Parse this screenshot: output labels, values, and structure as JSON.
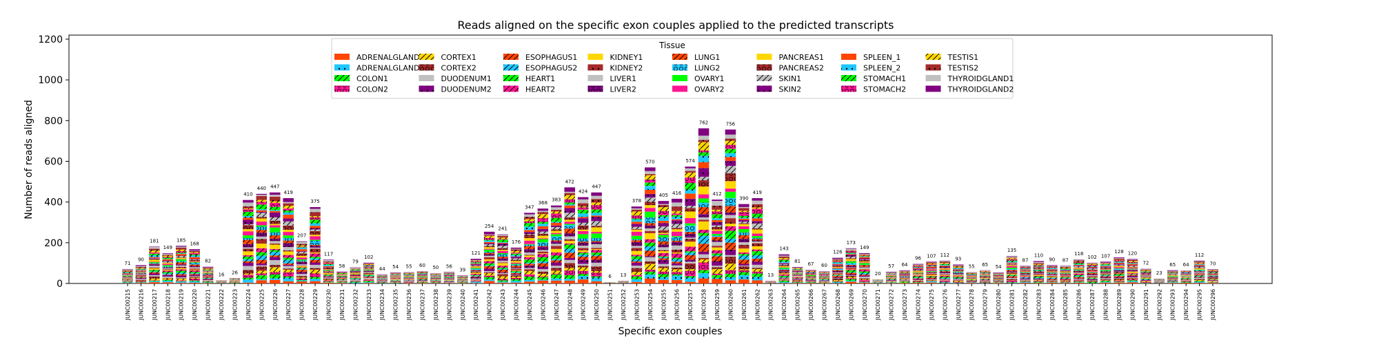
{
  "chart_data": {
    "type": "bar",
    "stacked": true,
    "title": "Reads aligned on the specific exon couples applied to the predicted transcripts",
    "xlabel": "Specific exon couples",
    "ylabel": "Number of reads aligned",
    "ylim": [
      0,
      1220
    ],
    "yticks": [
      0,
      200,
      400,
      600,
      800,
      1000,
      1200
    ],
    "legend_title": "Tissue",
    "legend_position": "upper center",
    "categories": [
      "JUNC00215",
      "JUNC00216",
      "JUNC00217",
      "JUNC00218",
      "JUNC00219",
      "JUNC00220",
      "JUNC00221",
      "JUNC00222",
      "JUNC00223",
      "JUNC00224",
      "JUNC00225",
      "JUNC00226",
      "JUNC00227",
      "JUNC00228",
      "JUNC00229",
      "JUNC00230",
      "JUNC00231",
      "JUNC00232",
      "JUNC00233",
      "JUNC00234",
      "JUNC00235",
      "JUNC00236",
      "JUNC00237",
      "JUNC00238",
      "JUNC00239",
      "JUNC00240",
      "JUNC00241",
      "JUNC00242",
      "JUNC00243",
      "JUNC00244",
      "JUNC00245",
      "JUNC00246",
      "JUNC00247",
      "JUNC00248",
      "JUNC00249",
      "JUNC00250",
      "JUNC00251",
      "JUNC00252",
      "JUNC00253",
      "JUNC00254",
      "JUNC00255",
      "JUNC00256",
      "JUNC00257",
      "JUNC00258",
      "JUNC00259",
      "JUNC00260",
      "JUNC00261",
      "JUNC00262",
      "JUNC00263",
      "JUNC00264",
      "JUNC00265",
      "JUNC00266",
      "JUNC00267",
      "JUNC00268",
      "JUNC00269",
      "JUNC00270",
      "JUNC00271",
      "JUNC00272",
      "JUNC00273",
      "JUNC00274",
      "JUNC00275",
      "JUNC00276",
      "JUNC00277",
      "JUNC00278",
      "JUNC00279",
      "JUNC00280",
      "JUNC00281",
      "JUNC00282",
      "JUNC00283",
      "JUNC00284",
      "JUNC00285",
      "JUNC00286",
      "JUNC00287",
      "JUNC00288",
      "JUNC00289",
      "JUNC00290",
      "JUNC00291",
      "JUNC00292",
      "JUNC00293",
      "JUNC00294",
      "JUNC00295",
      "JUNC00296"
    ],
    "totals": [
      71,
      90,
      181,
      149,
      185,
      168,
      82,
      16,
      26,
      410,
      440,
      447,
      419,
      207,
      375,
      117,
      58,
      79,
      102,
      44,
      54,
      55,
      60,
      50,
      56,
      39,
      121,
      254,
      241,
      176,
      347,
      368,
      383,
      472,
      424,
      447,
      6,
      13,
      378,
      570,
      405,
      416,
      574,
      762,
      412,
      756,
      390,
      419,
      13,
      143,
      81,
      67,
      60,
      126,
      173,
      149,
      20,
      57,
      64,
      96,
      107,
      112,
      93,
      55,
      65,
      54,
      135,
      87,
      110,
      90,
      87,
      118,
      102,
      107,
      128,
      120,
      72,
      23,
      65,
      64,
      112,
      70
    ],
    "series": [
      {
        "name": "ADRENALGLAND1",
        "color": "#ff4500",
        "hatch": ""
      },
      {
        "name": "ADRENALGLAND2",
        "color": "#1ec8ff",
        "hatch": "dots"
      },
      {
        "name": "COLON1",
        "color": "#00ff00",
        "hatch": "slash"
      },
      {
        "name": "COLON2",
        "color": "#ff1493",
        "hatch": "circles"
      },
      {
        "name": "CORTEX1",
        "color": "#ffd700",
        "hatch": "slash"
      },
      {
        "name": "CORTEX2",
        "color": "#a52a2a",
        "hatch": "circles"
      },
      {
        "name": "DUODENUM1",
        "color": "#c0c0c0",
        "hatch": ""
      },
      {
        "name": "DUODENUM2",
        "color": "#800080",
        "hatch": "dots"
      },
      {
        "name": "ESOPHAGUS1",
        "color": "#ff4500",
        "hatch": "slash"
      },
      {
        "name": "ESOPHAGUS2",
        "color": "#1ec8ff",
        "hatch": "slash"
      },
      {
        "name": "HEART1",
        "color": "#00ff00",
        "hatch": "slash"
      },
      {
        "name": "HEART2",
        "color": "#ff1493",
        "hatch": "slash"
      },
      {
        "name": "KIDNEY1",
        "color": "#ffd700",
        "hatch": ""
      },
      {
        "name": "KIDNEY2",
        "color": "#a52a2a",
        "hatch": "dots"
      },
      {
        "name": "LIVER1",
        "color": "#c0c0c0",
        "hatch": ""
      },
      {
        "name": "LIVER2",
        "color": "#800080",
        "hatch": "circles"
      },
      {
        "name": "LUNG1",
        "color": "#ff4500",
        "hatch": "slash"
      },
      {
        "name": "LUNG2",
        "color": "#1ec8ff",
        "hatch": "circles"
      },
      {
        "name": "OVARY1",
        "color": "#00ff00",
        "hatch": ""
      },
      {
        "name": "OVARY2",
        "color": "#ff1493",
        "hatch": ""
      },
      {
        "name": "PANCREAS1",
        "color": "#ffd700",
        "hatch": ""
      },
      {
        "name": "PANCREAS2",
        "color": "#a52a2a",
        "hatch": "circles"
      },
      {
        "name": "SKIN1",
        "color": "#c0c0c0",
        "hatch": "slash"
      },
      {
        "name": "SKIN2",
        "color": "#800080",
        "hatch": "dots"
      },
      {
        "name": "SPLEEN_1",
        "color": "#ff4500",
        "hatch": ""
      },
      {
        "name": "SPLEEN_2",
        "color": "#1ec8ff",
        "hatch": "dots"
      },
      {
        "name": "STOMACH1",
        "color": "#00ff00",
        "hatch": "slash"
      },
      {
        "name": "STOMACH2",
        "color": "#ff1493",
        "hatch": "circles"
      },
      {
        "name": "TESTIS1",
        "color": "#ffd700",
        "hatch": "slash"
      },
      {
        "name": "TESTIS2",
        "color": "#a52a2a",
        "hatch": "dots"
      },
      {
        "name": "THYROIDGLAND1",
        "color": "#c0c0c0",
        "hatch": ""
      },
      {
        "name": "THYROIDGLAND2",
        "color": "#800080",
        "hatch": ""
      }
    ]
  }
}
